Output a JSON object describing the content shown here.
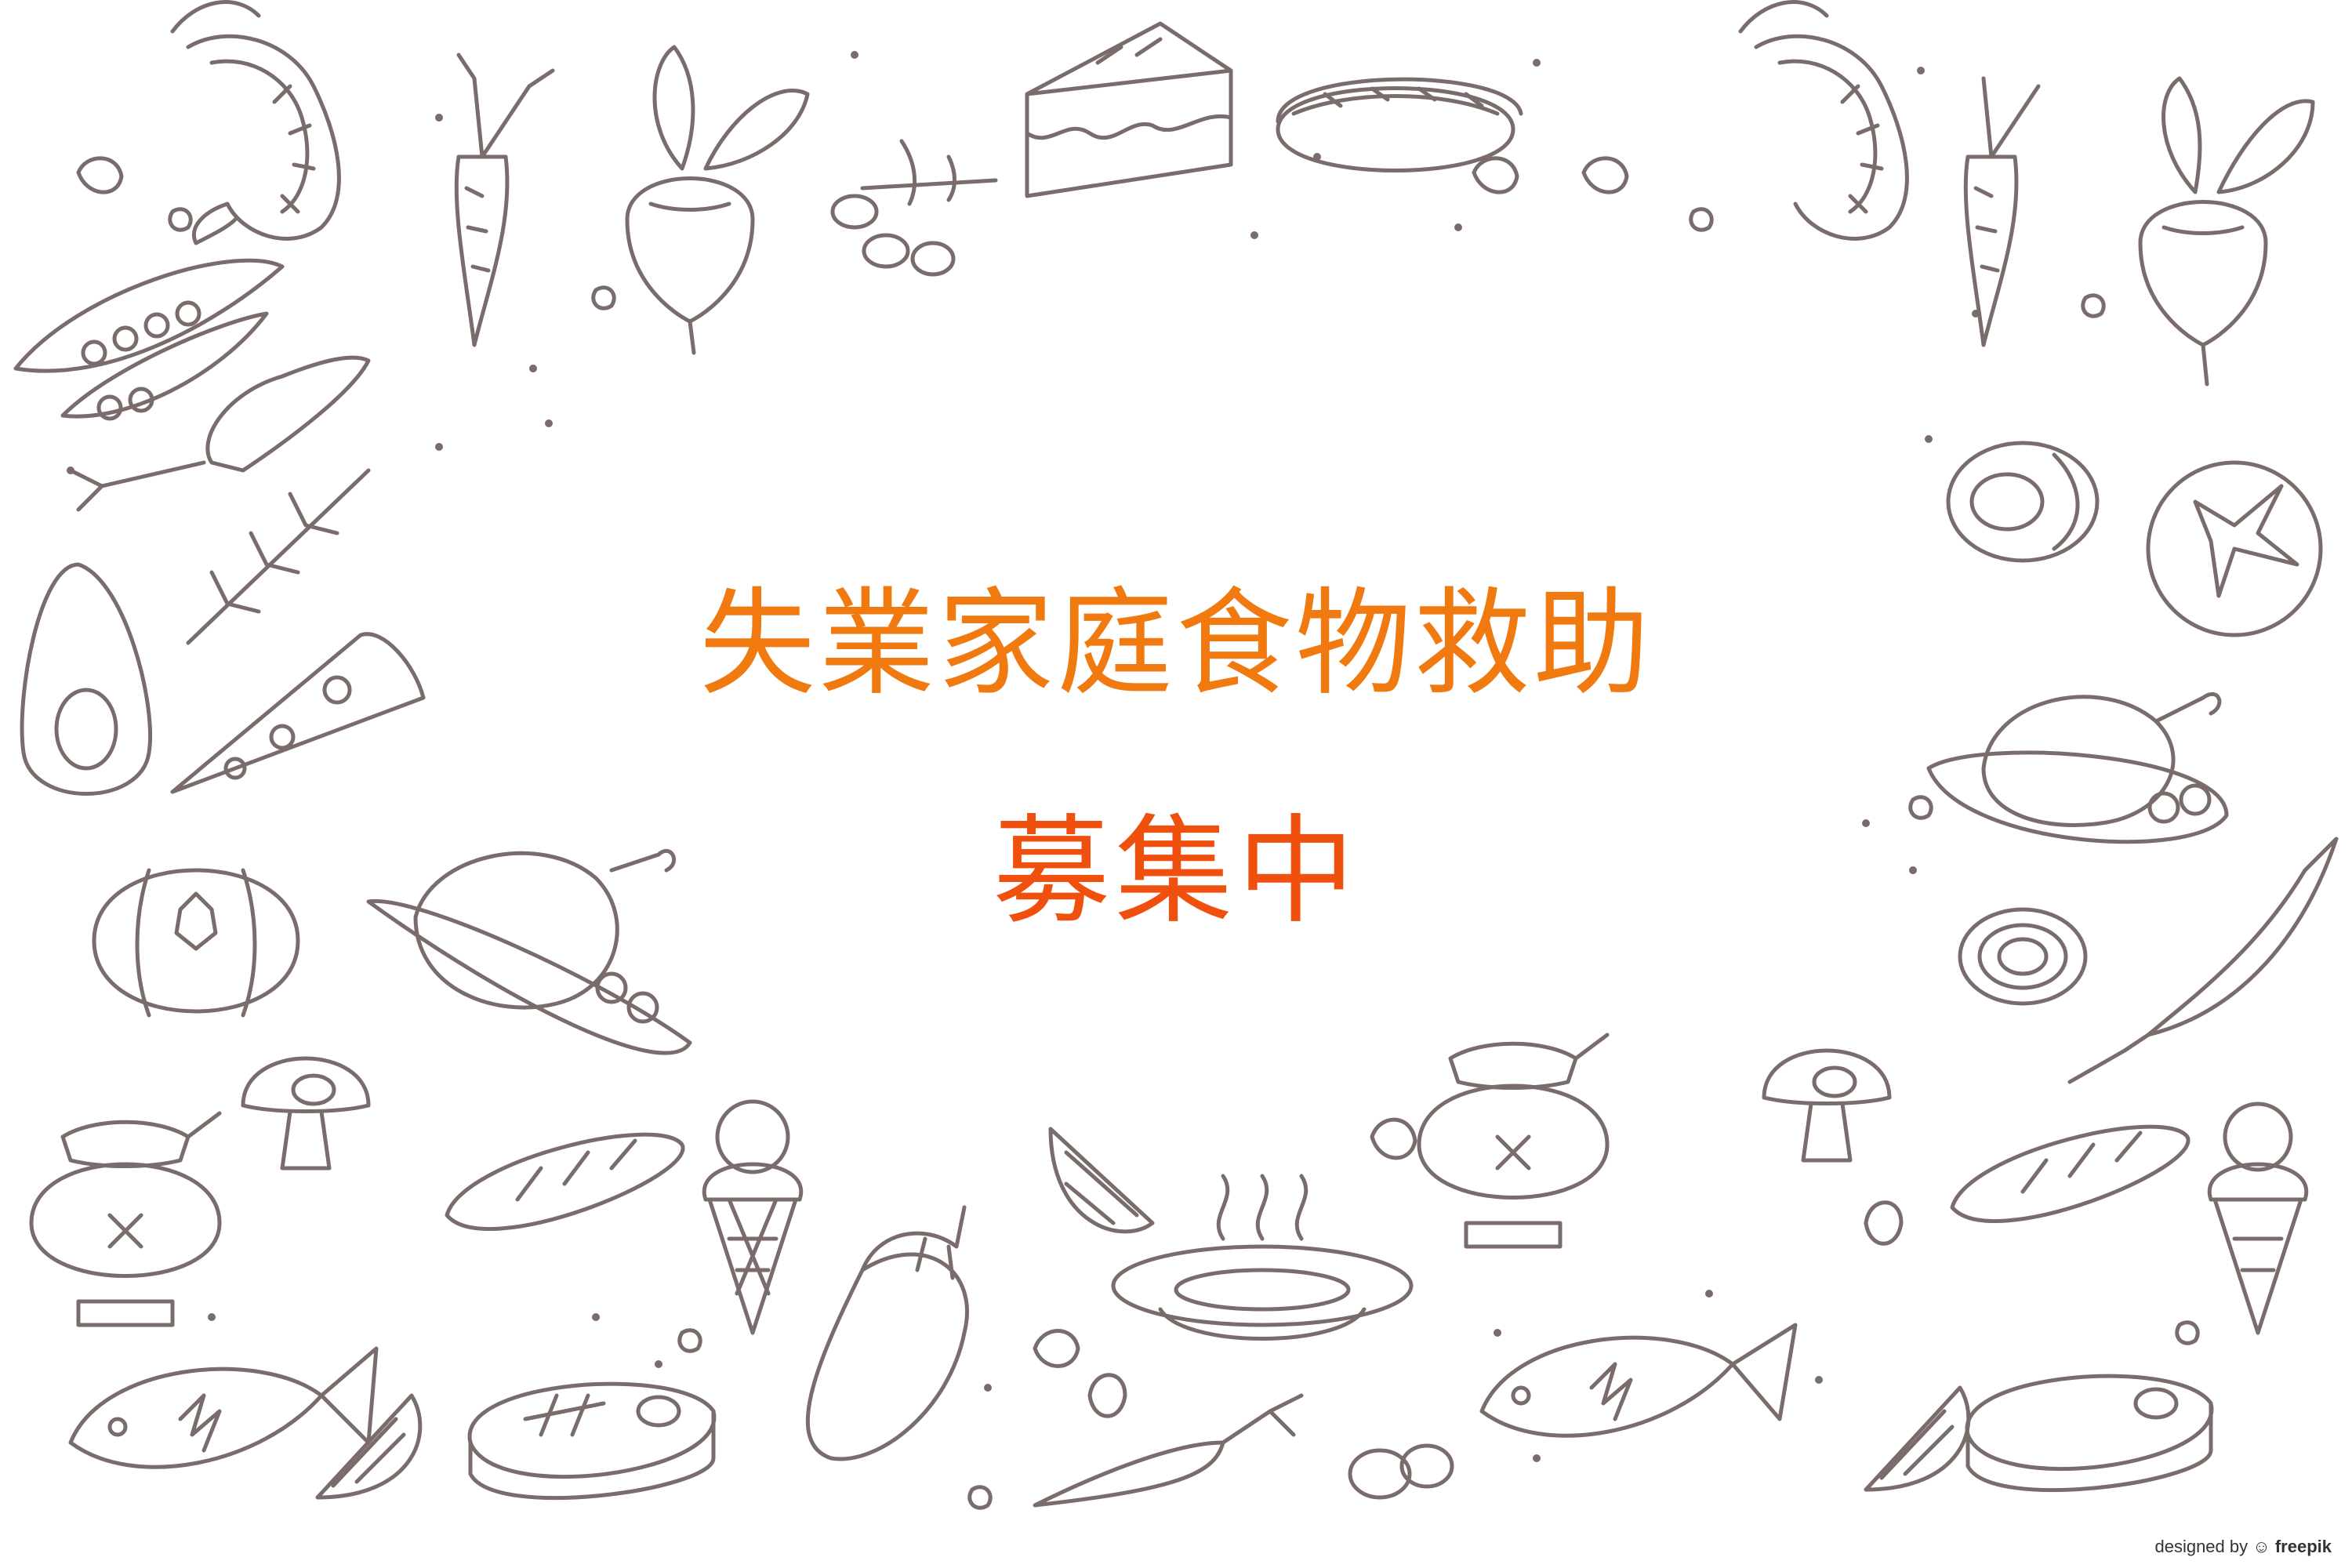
{
  "headline": {
    "line1": "失業家庭食物救助",
    "line2": "募集中",
    "line1_color": "#f07a10",
    "line2_color": "#f0500e"
  },
  "credit": {
    "prefix": "designed by",
    "brand": "freepik"
  },
  "doodle_color": "#7a6c6a",
  "doodles": [
    "shrimp",
    "carrot",
    "beet",
    "cake",
    "hotdog",
    "olives",
    "peas",
    "avocado",
    "pizza",
    "pumpkin",
    "roast-chicken",
    "mushroom",
    "honey-jar",
    "bread",
    "ice-cream",
    "lemon",
    "eggplant",
    "soup",
    "fish",
    "steak",
    "tomato",
    "onion",
    "chili",
    "beans"
  ]
}
